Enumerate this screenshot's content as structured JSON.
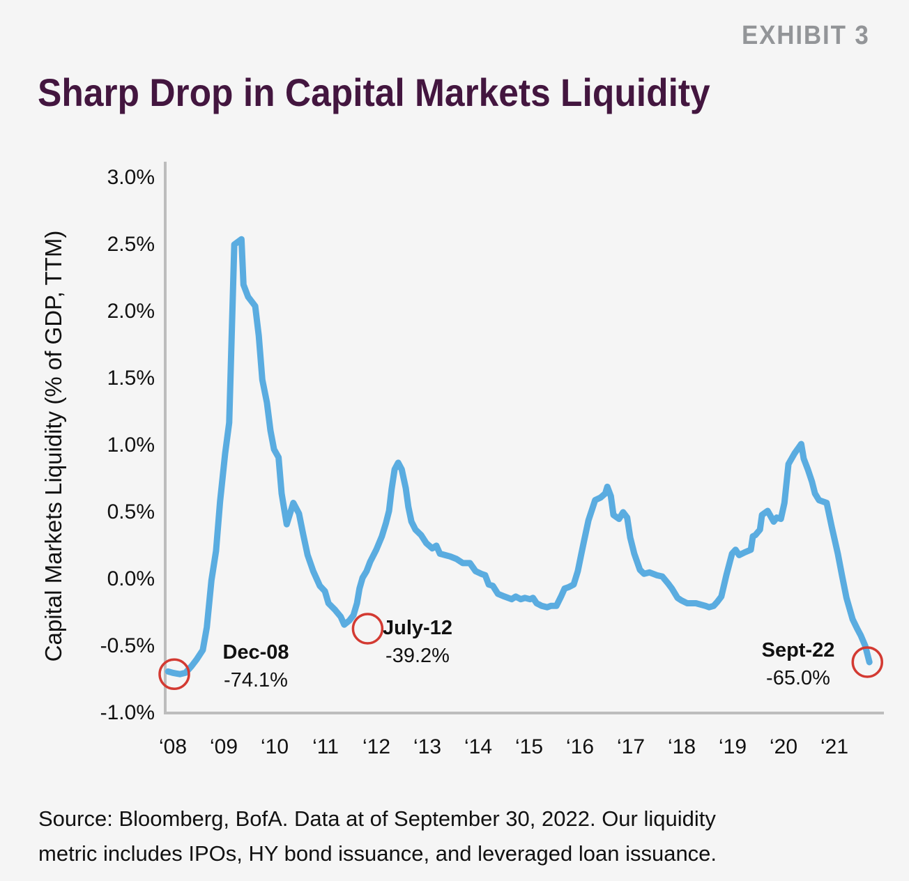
{
  "header": {
    "exhibit": "EXHIBIT 3",
    "title": "Sharp Drop in Capital Markets Liquidity"
  },
  "footer": {
    "source_line1": "Source: Bloomberg, BofA. Data at of September 30, 2022. Our liquidity",
    "source_line2": "metric includes IPOs, HY bond issuance, and leveraged loan issuance."
  },
  "colors": {
    "line": "#5aace0",
    "marker": "#d33a32",
    "axis": "#bdbdbd",
    "title": "#43163f",
    "exhibit": "#939598"
  },
  "chart_data": {
    "type": "line",
    "title": "Sharp Drop in Capital Markets Liquidity",
    "xlabel": "",
    "ylabel": "Capital Markets Liquidity (% of GDP, TTM)",
    "ylim": [
      -1.0,
      3.0
    ],
    "xlim": [
      2007.85,
      2022.0
    ],
    "grid": false,
    "legend": "none",
    "y_ticks": [
      {
        "value": 3.0,
        "label": "3.0%"
      },
      {
        "value": 2.5,
        "label": "2.5%"
      },
      {
        "value": 2.0,
        "label": "2.0%"
      },
      {
        "value": 1.5,
        "label": "1.5%"
      },
      {
        "value": 1.0,
        "label": "1.0%"
      },
      {
        "value": 0.5,
        "label": "0.5%"
      },
      {
        "value": 0.0,
        "label": "0.0%"
      },
      {
        "value": -0.5,
        "label": "-0.5%"
      },
      {
        "value": -1.0,
        "label": "-1.0%"
      }
    ],
    "x_ticks": [
      {
        "value": 2008,
        "label": "‘08"
      },
      {
        "value": 2009,
        "label": "‘09"
      },
      {
        "value": 2010,
        "label": "‘10"
      },
      {
        "value": 2011,
        "label": "‘11"
      },
      {
        "value": 2012,
        "label": "‘12"
      },
      {
        "value": 2013,
        "label": "‘13"
      },
      {
        "value": 2014,
        "label": "‘14"
      },
      {
        "value": 2015,
        "label": "‘15"
      },
      {
        "value": 2016,
        "label": "‘16"
      },
      {
        "value": 2017,
        "label": "‘17"
      },
      {
        "value": 2018,
        "label": "‘18"
      },
      {
        "value": 2019,
        "label": "‘19"
      },
      {
        "value": 2020,
        "label": "‘20"
      },
      {
        "value": 2021,
        "label": "‘21"
      }
    ],
    "series": [
      {
        "name": "Capital Markets Liquidity",
        "points": [
          [
            2007.88,
            -0.7
          ],
          [
            2007.97,
            -0.71
          ],
          [
            2008.11,
            -0.72
          ],
          [
            2008.22,
            -0.71
          ],
          [
            2008.34,
            -0.66
          ],
          [
            2008.44,
            -0.61
          ],
          [
            2008.56,
            -0.54
          ],
          [
            2008.64,
            -0.37
          ],
          [
            2008.73,
            -0.02
          ],
          [
            2008.82,
            0.2
          ],
          [
            2008.9,
            0.57
          ],
          [
            2009.0,
            0.93
          ],
          [
            2009.08,
            1.16
          ],
          [
            2009.18,
            2.49
          ],
          [
            2009.32,
            2.53
          ],
          [
            2009.36,
            2.19
          ],
          [
            2009.45,
            2.1
          ],
          [
            2009.59,
            2.03
          ],
          [
            2009.66,
            1.81
          ],
          [
            2009.73,
            1.48
          ],
          [
            2009.82,
            1.31
          ],
          [
            2009.89,
            1.1
          ],
          [
            2009.96,
            0.96
          ],
          [
            2010.05,
            0.9
          ],
          [
            2010.11,
            0.63
          ],
          [
            2010.21,
            0.4
          ],
          [
            2010.34,
            0.56
          ],
          [
            2010.45,
            0.48
          ],
          [
            2010.53,
            0.33
          ],
          [
            2010.62,
            0.17
          ],
          [
            2010.73,
            0.05
          ],
          [
            2010.86,
            -0.06
          ],
          [
            2010.96,
            -0.1
          ],
          [
            2011.03,
            -0.19
          ],
          [
            2011.16,
            -0.24
          ],
          [
            2011.27,
            -0.29
          ],
          [
            2011.34,
            -0.35
          ],
          [
            2011.44,
            -0.32
          ],
          [
            2011.52,
            -0.28
          ],
          [
            2011.59,
            -0.19
          ],
          [
            2011.64,
            -0.08
          ],
          [
            2011.7,
            0.0
          ],
          [
            2011.78,
            0.05
          ],
          [
            2011.85,
            0.12
          ],
          [
            2011.97,
            0.21
          ],
          [
            2012.08,
            0.31
          ],
          [
            2012.16,
            0.41
          ],
          [
            2012.22,
            0.5
          ],
          [
            2012.27,
            0.66
          ],
          [
            2012.33,
            0.81
          ],
          [
            2012.4,
            0.86
          ],
          [
            2012.47,
            0.81
          ],
          [
            2012.55,
            0.67
          ],
          [
            2012.6,
            0.53
          ],
          [
            2012.66,
            0.42
          ],
          [
            2012.74,
            0.36
          ],
          [
            2012.85,
            0.32
          ],
          [
            2012.95,
            0.26
          ],
          [
            2013.07,
            0.22
          ],
          [
            2013.15,
            0.24
          ],
          [
            2013.22,
            0.18
          ],
          [
            2013.32,
            0.17
          ],
          [
            2013.42,
            0.16
          ],
          [
            2013.55,
            0.14
          ],
          [
            2013.67,
            0.11
          ],
          [
            2013.81,
            0.11
          ],
          [
            2013.92,
            0.05
          ],
          [
            2014.03,
            0.03
          ],
          [
            2014.11,
            0.02
          ],
          [
            2014.18,
            -0.05
          ],
          [
            2014.26,
            -0.06
          ],
          [
            2014.36,
            -0.12
          ],
          [
            2014.49,
            -0.14
          ],
          [
            2014.63,
            -0.16
          ],
          [
            2014.71,
            -0.14
          ],
          [
            2014.81,
            -0.16
          ],
          [
            2014.89,
            -0.15
          ],
          [
            2014.99,
            -0.16
          ],
          [
            2015.05,
            -0.15
          ],
          [
            2015.12,
            -0.19
          ],
          [
            2015.22,
            -0.21
          ],
          [
            2015.33,
            -0.22
          ],
          [
            2015.4,
            -0.21
          ],
          [
            2015.51,
            -0.21
          ],
          [
            2015.6,
            -0.14
          ],
          [
            2015.67,
            -0.08
          ],
          [
            2015.75,
            -0.07
          ],
          [
            2015.85,
            -0.05
          ],
          [
            2015.93,
            0.05
          ],
          [
            2016.0,
            0.18
          ],
          [
            2016.05,
            0.27
          ],
          [
            2016.14,
            0.43
          ],
          [
            2016.21,
            0.51
          ],
          [
            2016.27,
            0.58
          ],
          [
            2016.38,
            0.6
          ],
          [
            2016.47,
            0.63
          ],
          [
            2016.51,
            0.68
          ],
          [
            2016.58,
            0.61
          ],
          [
            2016.63,
            0.47
          ],
          [
            2016.74,
            0.44
          ],
          [
            2016.82,
            0.49
          ],
          [
            2016.9,
            0.45
          ],
          [
            2016.96,
            0.3
          ],
          [
            2017.04,
            0.18
          ],
          [
            2017.15,
            0.06
          ],
          [
            2017.23,
            0.03
          ],
          [
            2017.34,
            0.04
          ],
          [
            2017.48,
            0.02
          ],
          [
            2017.59,
            0.01
          ],
          [
            2017.7,
            -0.04
          ],
          [
            2017.78,
            -0.08
          ],
          [
            2017.89,
            -0.15
          ],
          [
            2017.97,
            -0.17
          ],
          [
            2018.08,
            -0.19
          ],
          [
            2018.25,
            -0.19
          ],
          [
            2018.44,
            -0.21
          ],
          [
            2018.51,
            -0.22
          ],
          [
            2018.6,
            -0.21
          ],
          [
            2018.67,
            -0.18
          ],
          [
            2018.75,
            -0.14
          ],
          [
            2018.85,
            0.02
          ],
          [
            2018.96,
            0.18
          ],
          [
            2019.03,
            0.21
          ],
          [
            2019.1,
            0.17
          ],
          [
            2019.21,
            0.19
          ],
          [
            2019.33,
            0.21
          ],
          [
            2019.37,
            0.31
          ],
          [
            2019.42,
            0.32
          ],
          [
            2019.51,
            0.36
          ],
          [
            2019.55,
            0.47
          ],
          [
            2019.66,
            0.5
          ],
          [
            2019.78,
            0.42
          ],
          [
            2019.84,
            0.45
          ],
          [
            2019.92,
            0.44
          ],
          [
            2019.99,
            0.56
          ],
          [
            2020.07,
            0.85
          ],
          [
            2020.19,
            0.93
          ],
          [
            2020.32,
            1.0
          ],
          [
            2020.37,
            0.89
          ],
          [
            2020.45,
            0.81
          ],
          [
            2020.53,
            0.72
          ],
          [
            2020.59,
            0.63
          ],
          [
            2020.67,
            0.58
          ],
          [
            2020.82,
            0.56
          ],
          [
            2020.92,
            0.38
          ],
          [
            2021.04,
            0.18
          ],
          [
            2021.12,
            0.02
          ],
          [
            2021.21,
            -0.15
          ],
          [
            2021.33,
            -0.31
          ],
          [
            2021.42,
            -0.38
          ],
          [
            2021.49,
            -0.43
          ],
          [
            2021.58,
            -0.51
          ],
          [
            2021.66,
            -0.63
          ]
        ]
      }
    ],
    "annotations": [
      {
        "x": 2008.0,
        "y": -0.72,
        "label": "Dec-08",
        "value": "-74.1%",
        "text_side": "right"
      },
      {
        "x": 2011.8,
        "y": -0.38,
        "label": "July-12",
        "value": "-39.2%",
        "text_side": "right"
      },
      {
        "x": 2021.62,
        "y": -0.63,
        "label": "Sept-22",
        "value": "-65.0%",
        "text_side": "left"
      }
    ]
  }
}
